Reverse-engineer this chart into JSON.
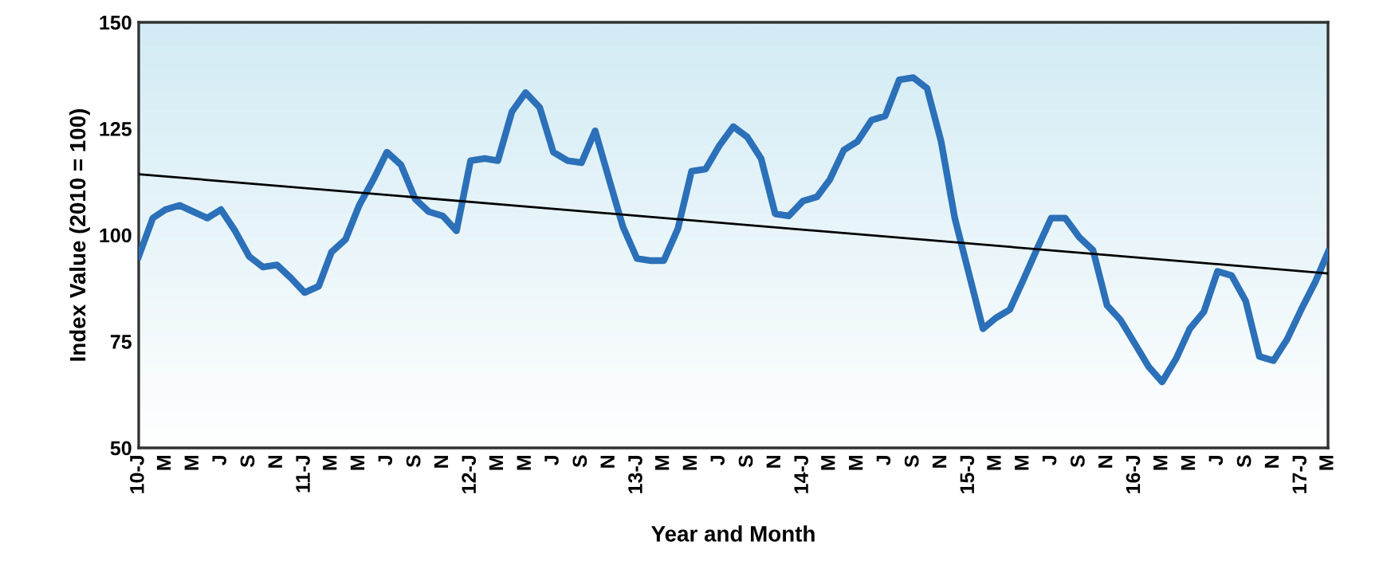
{
  "chart_data": {
    "type": "line",
    "xlabel": "Year and Month",
    "ylabel": "Index Value (2010 = 100)",
    "x": [
      "2010-01",
      "2010-02",
      "2010-03",
      "2010-04",
      "2010-05",
      "2010-06",
      "2010-07",
      "2010-08",
      "2010-09",
      "2010-10",
      "2010-11",
      "2010-12",
      "2011-01",
      "2011-02",
      "2011-03",
      "2011-04",
      "2011-05",
      "2011-06",
      "2011-07",
      "2011-08",
      "2011-09",
      "2011-10",
      "2011-11",
      "2011-12",
      "2012-01",
      "2012-02",
      "2012-03",
      "2012-04",
      "2012-05",
      "2012-06",
      "2012-07",
      "2012-08",
      "2012-09",
      "2012-10",
      "2012-11",
      "2012-12",
      "2013-01",
      "2013-02",
      "2013-03",
      "2013-04",
      "2013-05",
      "2013-06",
      "2013-07",
      "2013-08",
      "2013-09",
      "2013-10",
      "2013-11",
      "2013-12",
      "2014-01",
      "2014-02",
      "2014-03",
      "2014-04",
      "2014-05",
      "2014-06",
      "2014-07",
      "2014-08",
      "2014-09",
      "2014-10",
      "2014-11",
      "2014-12",
      "2015-01",
      "2015-02",
      "2015-03",
      "2015-04",
      "2015-05",
      "2015-06",
      "2015-07",
      "2015-08",
      "2015-09",
      "2015-10",
      "2015-11",
      "2015-12",
      "2016-01",
      "2016-02",
      "2016-03",
      "2016-04",
      "2016-05",
      "2016-06",
      "2016-07",
      "2016-08",
      "2016-09",
      "2016-10",
      "2016-11",
      "2016-12",
      "2017-01",
      "2017-02",
      "2017-03"
    ],
    "series": [
      {
        "color": "#2b70b8",
        "values": [
          95,
          104,
          106,
          107,
          105.5,
          104,
          106,
          101,
          95,
          92.5,
          93,
          90,
          86.5,
          88,
          96,
          99,
          107,
          113,
          119.5,
          116.5,
          108.5,
          105.5,
          104.5,
          101,
          117.5,
          118,
          117.5,
          129,
          133.5,
          130,
          119.5,
          117.5,
          117,
          124.5,
          113,
          102,
          94.5,
          94,
          94,
          101.5,
          115,
          115.5,
          121,
          125.5,
          123,
          118,
          105,
          104.5,
          108,
          109,
          113,
          120,
          122,
          127,
          128,
          136.5,
          137,
          134.5,
          122,
          104,
          91,
          78,
          80.5,
          82.5,
          89.5,
          97,
          104,
          104,
          99.5,
          96.5,
          83.5,
          80,
          74.5,
          69,
          65.5,
          71,
          78,
          82,
          91.5,
          90.5,
          84.5,
          71.5,
          70.5,
          75.5,
          82.5,
          89,
          96
        ]
      },
      {
        "type": "line",
        "color": "#000000",
        "x": [
          "2010-01",
          "2017-03"
        ],
        "values": [
          114.3,
          91
        ]
      }
    ],
    "xlim": [
      "2010-01",
      "2017-03"
    ],
    "xticks": [
      {
        "value": "2010-01",
        "label": "10-J"
      },
      {
        "value": "2010-03",
        "label": "M"
      },
      {
        "value": "2010-05",
        "label": "M"
      },
      {
        "value": "2010-07",
        "label": "J"
      },
      {
        "value": "2010-09",
        "label": "S"
      },
      {
        "value": "2010-11",
        "label": "N"
      },
      {
        "value": "2011-01",
        "label": "11-J"
      },
      {
        "value": "2011-03",
        "label": "M"
      },
      {
        "value": "2011-05",
        "label": "M"
      },
      {
        "value": "2011-07",
        "label": "J"
      },
      {
        "value": "2011-09",
        "label": "S"
      },
      {
        "value": "2011-11",
        "label": "N"
      },
      {
        "value": "2012-01",
        "label": "12-J"
      },
      {
        "value": "2012-03",
        "label": "M"
      },
      {
        "value": "2012-05",
        "label": "M"
      },
      {
        "value": "2012-07",
        "label": "J"
      },
      {
        "value": "2012-09",
        "label": "S"
      },
      {
        "value": "2012-11",
        "label": "N"
      },
      {
        "value": "2013-01",
        "label": "13-J"
      },
      {
        "value": "2013-03",
        "label": "M"
      },
      {
        "value": "2013-05",
        "label": "M"
      },
      {
        "value": "2013-07",
        "label": "J"
      },
      {
        "value": "2013-09",
        "label": "S"
      },
      {
        "value": "2013-11",
        "label": "N"
      },
      {
        "value": "2014-01",
        "label": "14-J"
      },
      {
        "value": "2014-03",
        "label": "M"
      },
      {
        "value": "2014-05",
        "label": "M"
      },
      {
        "value": "2014-07",
        "label": "J"
      },
      {
        "value": "2014-09",
        "label": "S"
      },
      {
        "value": "2014-11",
        "label": "N"
      },
      {
        "value": "2015-01",
        "label": "15-J"
      },
      {
        "value": "2015-03",
        "label": "M"
      },
      {
        "value": "2015-05",
        "label": "M"
      },
      {
        "value": "2015-07",
        "label": "J"
      },
      {
        "value": "2015-09",
        "label": "S"
      },
      {
        "value": "2015-11",
        "label": "N"
      },
      {
        "value": "2016-01",
        "label": "16-J"
      },
      {
        "value": "2016-03",
        "label": "M"
      },
      {
        "value": "2016-05",
        "label": "M"
      },
      {
        "value": "2016-07",
        "label": "J"
      },
      {
        "value": "2016-09",
        "label": "S"
      },
      {
        "value": "2016-11",
        "label": "N"
      },
      {
        "value": "2017-01",
        "label": "17-J"
      },
      {
        "value": "2017-03",
        "label": "M"
      }
    ],
    "ylim": [
      50,
      150
    ],
    "yticks": [
      50,
      75,
      100,
      125,
      150
    ],
    "grid": false,
    "legend": false
  }
}
